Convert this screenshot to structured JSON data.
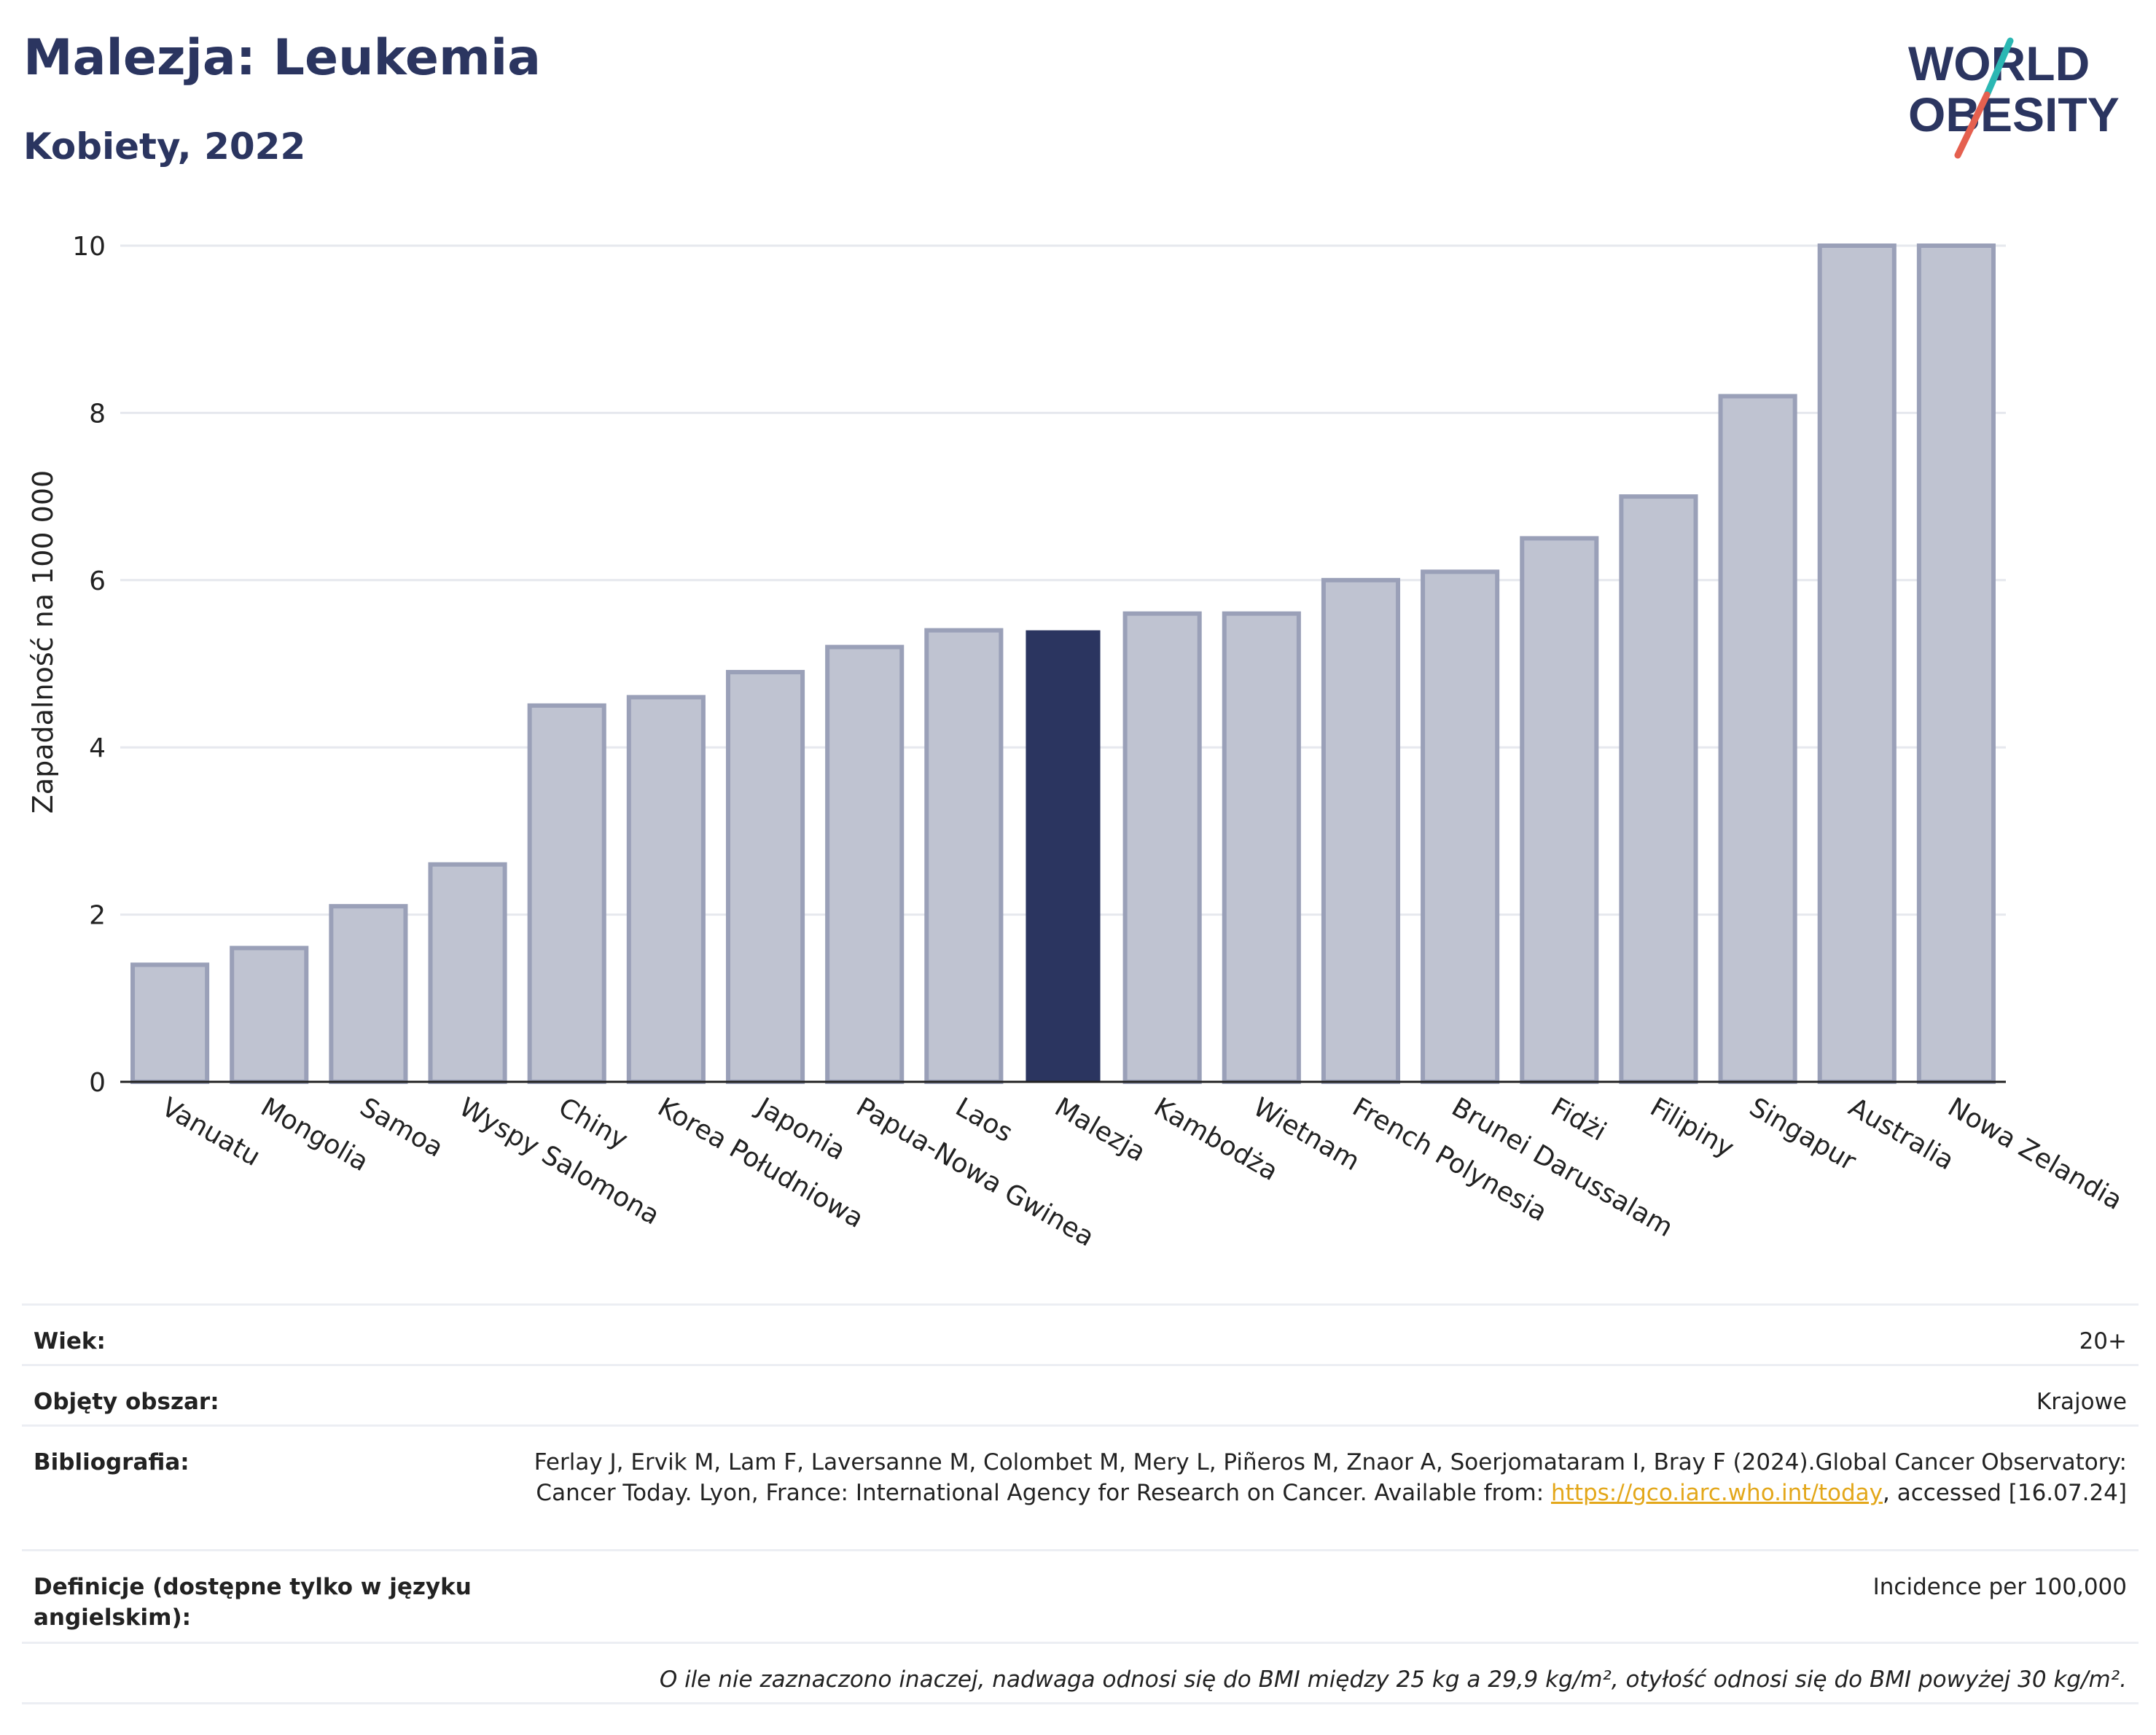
{
  "header": {
    "title": "Malezja: Leukemia",
    "subtitle": "Kobiety, 2022"
  },
  "logo": {
    "line1": "WORLD",
    "line2": "OBESITY"
  },
  "chart_data": {
    "type": "bar",
    "title": "Malezja: Leukemia",
    "subtitle": "Kobiety, 2022",
    "xlabel": "",
    "ylabel": "Zapadalność na 100 000",
    "ylim": [
      0,
      10
    ],
    "yticks": [
      0,
      2,
      4,
      6,
      8,
      10
    ],
    "grid": true,
    "highlight": "Malezja",
    "colors": {
      "bar": "#bfc3d1",
      "bar_edge": "#9aa0b8",
      "highlight": "#2b3560"
    },
    "categories": [
      "Vanuatu",
      "Mongolia",
      "Samoa",
      "Wyspy Salomona",
      "Chiny",
      "Korea Południowa",
      "Japonia",
      "Papua-Nowa Gwinea",
      "Laos",
      "Malezja",
      "Kambodża",
      "Wietnam",
      "French Polynesia",
      "Brunei Darussalam",
      "Fidżi",
      "Filipiny",
      "Singapur",
      "Australia",
      "Nowa Zelandia"
    ],
    "values": [
      1.4,
      1.6,
      2.1,
      2.6,
      4.5,
      4.6,
      4.9,
      5.2,
      5.4,
      5.4,
      5.6,
      5.6,
      6.0,
      6.1,
      6.5,
      7.0,
      8.2,
      10.0,
      10.0
    ]
  },
  "meta": {
    "age_label": "Wiek:",
    "age_value": "20+",
    "area_label": "Objęty obszar:",
    "area_value": "Krajowe",
    "bib_label": "Bibliografia:",
    "bib_text_1": "Ferlay J, Ervik M, Lam F, Laversanne M, Colombet M, Mery L, Piñeros M, Znaor A, Soerjomataram I, Bray F (2024).Global Cancer Observatory: Cancer Today. Lyon, France: International Agency for Research on Cancer. Available from: ",
    "bib_link": "https://gco.iarc.who.int/today",
    "bib_text_2": ", accessed [16.07.24]",
    "def_label": "Definicje (dostępne tylko w języku angielskim):",
    "def_value": "Incidence per 100,000",
    "note": "O ile nie zaznaczono inaczej, nadwaga odnosi się do BMI między 25 kg a 29,9 kg/m², otyłość odnosi się do BMI powyżej 30 kg/m²."
  }
}
